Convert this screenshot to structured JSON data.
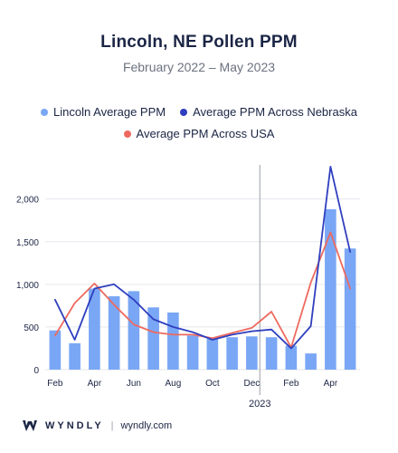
{
  "header": {
    "title": "Lincoln, NE Pollen PPM",
    "subtitle": "February 2022 – May 2023"
  },
  "legend": {
    "lincoln": "Lincoln Average PPM",
    "nebraska": "Average PPM Across Nebraska",
    "usa": "Average PPM Across USA"
  },
  "colors": {
    "bars": "#7aa7f5",
    "nebraska": "#2f3fbf",
    "usa": "#ee6a5f",
    "grid": "#e5e7eb",
    "divider": "#9aa0a6"
  },
  "footer": {
    "brand": "WYNDLY",
    "url": "wyndly.com"
  },
  "chart_data": {
    "type": "bar",
    "categories": [
      "Feb",
      "Mar",
      "Apr",
      "May",
      "Jun",
      "Jul",
      "Aug",
      "Sep",
      "Oct",
      "Nov",
      "Dec",
      "Jan",
      "Feb",
      "Mar",
      "Apr",
      "May"
    ],
    "x_tick_labels": [
      "Feb",
      "",
      "Apr",
      "",
      "Jun",
      "",
      "Aug",
      "",
      "Oct",
      "",
      "Dec",
      "",
      "Feb",
      "",
      "Apr",
      ""
    ],
    "year_label": "2023",
    "year_divider_before": "Jan",
    "ylim": [
      0,
      2400
    ],
    "yticks": [
      0,
      500,
      1000,
      1500,
      2000
    ],
    "ytick_labels": [
      "0",
      "500",
      "1,000",
      "1,500",
      "2,000"
    ],
    "grid": true,
    "legend_position": "top",
    "series": [
      {
        "name": "Lincoln Average PPM",
        "type": "bar",
        "values": [
          460,
          310,
          950,
          860,
          920,
          730,
          670,
          400,
          360,
          380,
          390,
          380,
          280,
          190,
          1880,
          1420
        ]
      },
      {
        "name": "Average PPM Across Nebraska",
        "type": "line",
        "values": [
          820,
          350,
          950,
          1000,
          820,
          590,
          500,
          440,
          350,
          410,
          450,
          470,
          250,
          510,
          2380,
          1380
        ]
      },
      {
        "name": "Average PPM Across USA",
        "type": "line",
        "values": [
          400,
          780,
          1010,
          760,
          530,
          440,
          410,
          410,
          370,
          430,
          490,
          680,
          260,
          1020,
          1610,
          950
        ]
      }
    ]
  }
}
